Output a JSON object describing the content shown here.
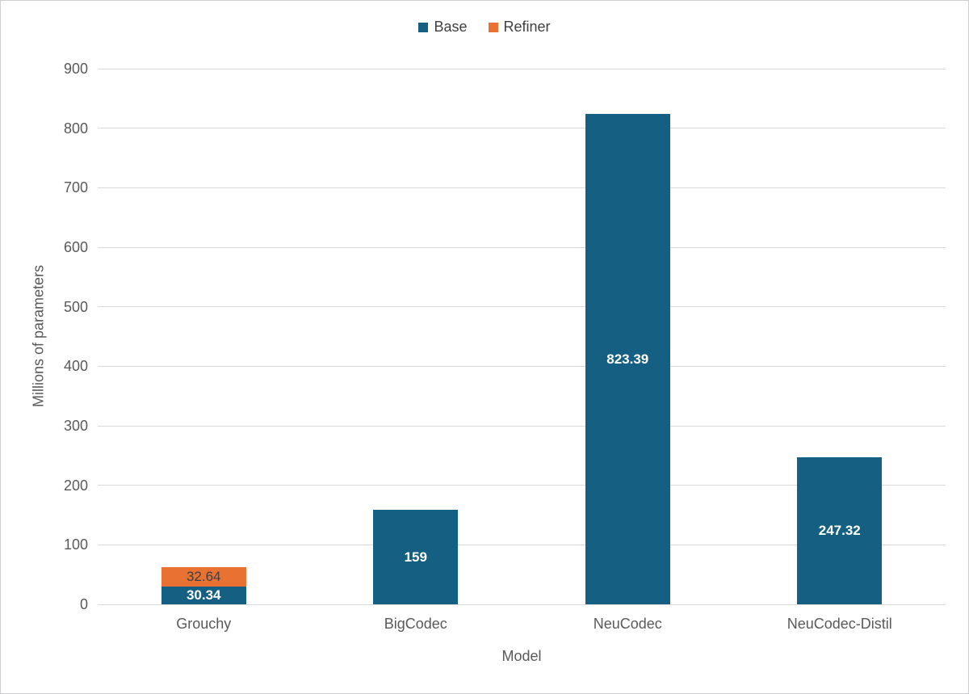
{
  "chart_data": {
    "type": "bar",
    "stacked": true,
    "title": "",
    "xlabel": "Model",
    "ylabel": "Millions of parameters",
    "ylim": [
      0,
      900
    ],
    "ytick_step": 100,
    "yticks": [
      "0",
      "100",
      "200",
      "300",
      "400",
      "500",
      "600",
      "700",
      "800",
      "900"
    ],
    "grid": true,
    "gridline_color": "#D9D9D9",
    "axis_text_color": "#595959",
    "legend_position": "top-center",
    "categories": [
      "Grouchy",
      "BigCodec",
      "NeuCodec",
      "NeuCodec-Distil"
    ],
    "series": [
      {
        "name": "Base",
        "color": "#156082",
        "values": [
          30.34,
          159,
          823.39,
          247.32
        ],
        "labels": [
          "30.34",
          "159",
          "823.39",
          "247.32"
        ],
        "label_color": "#FFFFFF"
      },
      {
        "name": "Refiner",
        "color": "#E97132",
        "values": [
          32.64,
          0,
          0,
          0
        ],
        "labels": [
          "32.64",
          "",
          "",
          ""
        ],
        "label_color": "#404040"
      }
    ]
  }
}
